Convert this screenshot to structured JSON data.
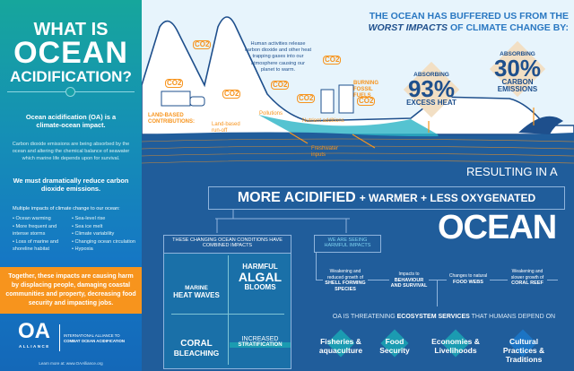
{
  "left": {
    "title_line1": "WHAT IS",
    "title_line2": "OCEAN",
    "title_line3": "ACIDIFICATION?",
    "intro": "Ocean acidification (OA) is a climate-ocean impact.",
    "body": "Carbon dioxide emissions are being absorbed by the ocean and altering the chemical balance of seawater which marine life depends upon for survival.",
    "call": "We must dramatically reduce carbon dioxide emissions.",
    "impacts_title": "Multiple impacts of climate change to our ocean:",
    "impacts_col1": [
      "Ocean warming",
      "More frequent and intense storms",
      "Loss of marine and shoreline habitat"
    ],
    "impacts_col2": [
      "Sea-level rise",
      "Sea ice melt",
      "Climate variability",
      "Changing ocean circulation",
      "Hypoxia"
    ],
    "harm": "Together, these impacts are causing harm by displacing people, damaging coastal communities and property, decreasing food security and impacting jobs.",
    "logo_text": "OA",
    "logo_sub": "ALLIANCE",
    "org_line1": "INTERNATIONAL ALLIANCE TO",
    "org_line2": "COMBAT OCEAN ACIDIFICATION",
    "learn_more": "Learn more at: www.OAAlliance.org"
  },
  "header": {
    "line1": "THE OCEAN HAS BUFFERED US FROM THE",
    "line2_bold": "WORST IMPACTS",
    "line2_rest": " OF CLIMATE CHANGE BY:"
  },
  "stats": [
    {
      "top": "ABSORBING",
      "value": "93%",
      "bottom": "EXCESS HEAT"
    },
    {
      "top": "ABSORBING",
      "value": "30%",
      "bottom": "CARBON EMISSIONS"
    }
  ],
  "scene": {
    "co2": "CO2",
    "human": "Human activities release carbon dioxide and other heat trapping gases into our atmosphere causing our planet to warm.",
    "land_based": "LAND-BASED CONTRIBUTIONS:",
    "runoff": "Land-based run-off",
    "pollutions": "Pollutions",
    "nutrients": "Nutrient additions",
    "freshwater": "Freshwater inputs",
    "fossil": "BURNING FOSSIL FUELS"
  },
  "result": {
    "intro": "RESULTING IN A",
    "acid": "MORE ACIDIFIED",
    "rest": "+ WARMER + LESS OXYGENATED",
    "ocean": "OCEAN"
  },
  "combined": {
    "title": "THESE CHANGING OCEAN CONDITIONS HAVE COMBINED IMPACTS",
    "cells": [
      {
        "a": "MARINE",
        "b": "HEAT WAVES"
      },
      {
        "a": "HARMFUL",
        "b": "ALGAL",
        "c": "BLOOMS"
      },
      {
        "a": "CORAL",
        "b": "BLEACHING"
      },
      {
        "a": "INCREASED",
        "b": "STRATIFICATION"
      }
    ]
  },
  "harmful": {
    "title": "WE ARE SEEING HARMFUL IMPACTS",
    "items": [
      {
        "small": "Weakening and reduced growth of",
        "bold": "SHELL FORMING SPECIES"
      },
      {
        "small": "Impacts to",
        "bold": "BEHAVIOUR AND SURVIVAL"
      },
      {
        "small": "Changes to natural",
        "bold": "FOOD WEBS"
      },
      {
        "small": "Weakening and slower growth of",
        "bold": "CORAL REEF"
      }
    ]
  },
  "ecosystem": {
    "pre": "OA IS THREATENING ",
    "bold": "ECOSYSTEM SERVICES",
    "post": " THAT HUMANS DEPEND ON",
    "services": [
      "Fisheries & aquaculture",
      "Food Security",
      "Economies & Livelihoods",
      "Cultural Practices & Traditions"
    ]
  },
  "colors": {
    "orange": "#f7941d",
    "navy": "#1e4f8c",
    "ocean": "#205d9b",
    "teal": "#16a69c"
  }
}
